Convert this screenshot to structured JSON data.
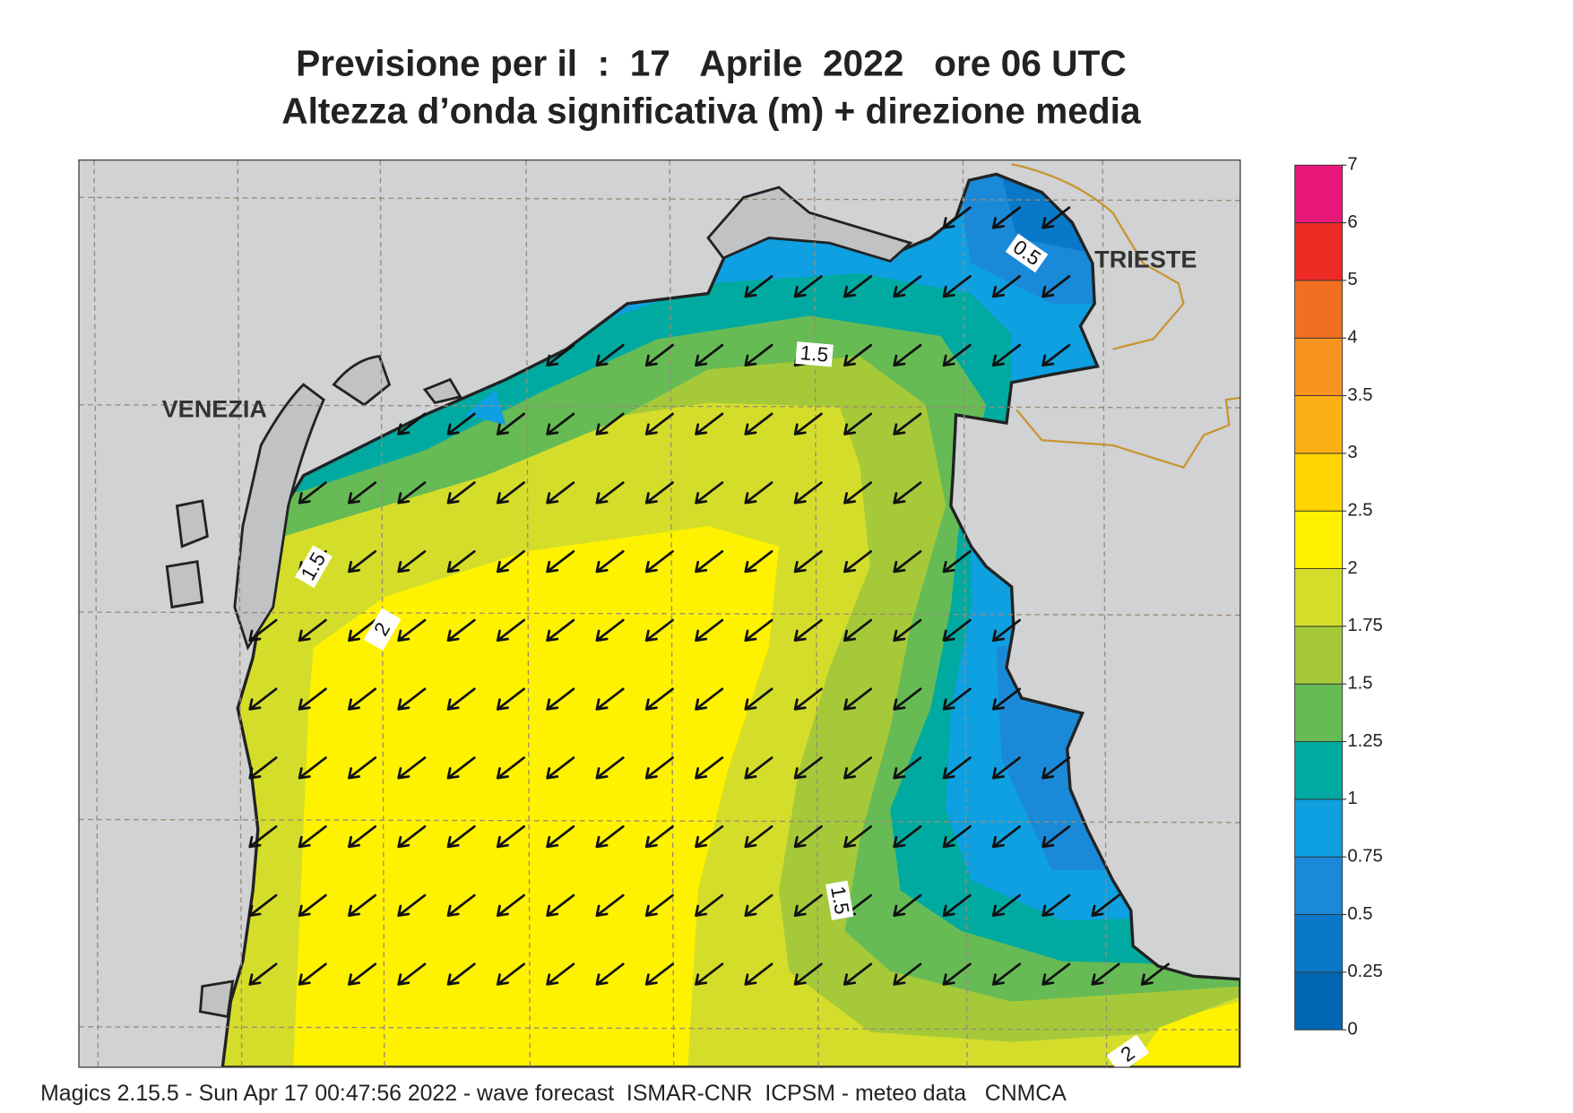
{
  "title": {
    "line1": "Previsione per il  :  17   Aprile  2022   ore 06 UTC",
    "line2": "Altezza d’onda significativa (m) + direzione media"
  },
  "map": {
    "cities": [
      "VENEZIA",
      "TRIESTE"
    ],
    "contour_labels": [
      0.5,
      1.5,
      1.5,
      1.5,
      2,
      2
    ]
  },
  "colorbar": {
    "levels": [
      0,
      0.25,
      0.5,
      0.75,
      1,
      1.25,
      1.5,
      1.75,
      2,
      2.5,
      3,
      3.5,
      4,
      5,
      6,
      7
    ],
    "colors": [
      "#0066b3",
      "#0a78c8",
      "#1a8ad8",
      "#0ea0e0",
      "#00aaa0",
      "#66bb55",
      "#a6c93a",
      "#d4de2a",
      "#fff200",
      "#ffd400",
      "#fbb016",
      "#f7931e",
      "#f26f22",
      "#ee2a24",
      "#e8177a"
    ]
  },
  "footer": "Magics 2.15.5 - Sun Apr 17 00:47:56 2022 - wave forecast  ISMAR-CNR  ICPSM - meteo data   CNMCA"
}
